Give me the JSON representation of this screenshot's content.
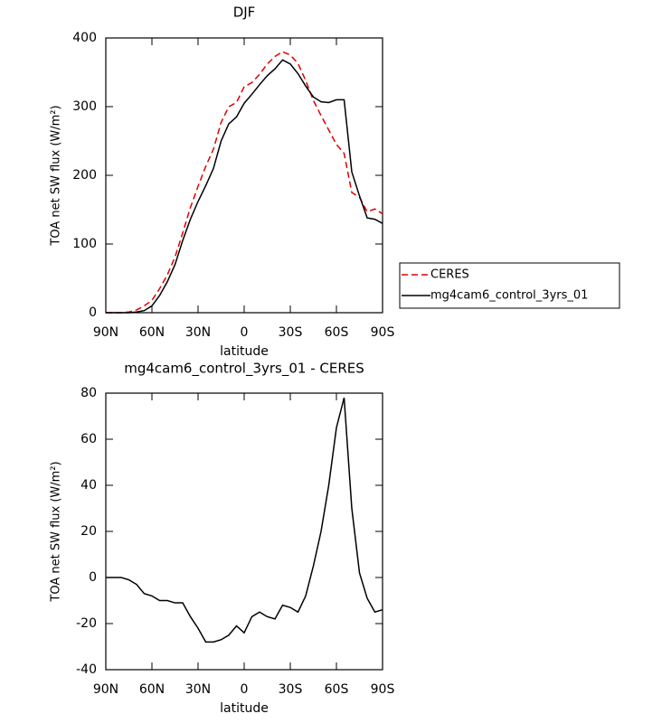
{
  "chart_data": [
    {
      "type": "line",
      "title": "DJF",
      "xlabel": "latitude",
      "ylabel": "TOA net SW flux (W/m²)",
      "x": [
        90,
        85,
        80,
        75,
        70,
        65,
        60,
        55,
        50,
        45,
        40,
        35,
        30,
        25,
        20,
        15,
        10,
        5,
        0,
        -5,
        -10,
        -15,
        -20,
        -25,
        -30,
        -35,
        -40,
        -45,
        -50,
        -55,
        -60,
        -65,
        -70,
        -75,
        -80,
        -85,
        -90
      ],
      "series": [
        {
          "name": "CERES",
          "color": "#e00000",
          "linestyle": "dashed",
          "values": [
            0,
            0,
            0,
            1,
            4,
            10,
            18,
            35,
            55,
            81,
            116,
            153,
            184,
            213,
            238,
            277,
            300,
            306,
            329,
            335,
            347,
            362,
            373,
            380,
            375,
            363,
            338,
            309,
            287,
            266,
            245,
            232,
            175,
            168,
            147,
            151,
            144
          ]
        },
        {
          "name": "mg4cam6_control_3yrs_01",
          "color": "#000000",
          "linestyle": "solid",
          "values": [
            0,
            0,
            0,
            0,
            1,
            3,
            10,
            25,
            45,
            70,
            105,
            136,
            162,
            185,
            210,
            250,
            275,
            285,
            305,
            318,
            332,
            345,
            355,
            368,
            362,
            348,
            330,
            314,
            307,
            306,
            310,
            310,
            205,
            170,
            138,
            136,
            130
          ]
        }
      ],
      "xlim": [
        90,
        -90
      ],
      "xticks": [
        {
          "value": 90,
          "label": "90N"
        },
        {
          "value": 60,
          "label": "60N"
        },
        {
          "value": 30,
          "label": "30N"
        },
        0,
        {
          "value": -30,
          "label": "30S"
        },
        {
          "value": -60,
          "label": "60S"
        },
        {
          "value": -90,
          "label": "90S"
        }
      ],
      "ylim": [
        0,
        400
      ],
      "yticks": [
        0,
        100,
        200,
        300,
        400
      ],
      "legend": "right"
    },
    {
      "type": "line",
      "title": "mg4cam6_control_3yrs_01 - CERES",
      "xlabel": "latitude",
      "ylabel": "TOA net SW flux (W/m²)",
      "x": [
        90,
        85,
        80,
        75,
        70,
        65,
        60,
        55,
        50,
        45,
        40,
        35,
        30,
        25,
        20,
        15,
        10,
        5,
        0,
        -5,
        -10,
        -15,
        -20,
        -25,
        -30,
        -35,
        -40,
        -45,
        -50,
        -55,
        -60,
        -65,
        -70,
        -75,
        -80,
        -85,
        -90
      ],
      "values": [
        0,
        0,
        0,
        -1,
        -3,
        -7,
        -8,
        -10,
        -10,
        -11,
        -11,
        -17,
        -22,
        -28,
        -28,
        -27,
        -25,
        -21,
        -24,
        -17,
        -15,
        -17,
        -18,
        -12,
        -13,
        -15,
        -8,
        5,
        20,
        40,
        65,
        78,
        30,
        2,
        -9,
        -15,
        -14
      ],
      "color": "#000000",
      "xlim": [
        90,
        -90
      ],
      "xticks": [
        {
          "value": 90,
          "label": "90N"
        },
        {
          "value": 60,
          "label": "60N"
        },
        {
          "value": 30,
          "label": "30N"
        },
        0,
        {
          "value": -30,
          "label": "30S"
        },
        {
          "value": -60,
          "label": "60S"
        },
        {
          "value": -90,
          "label": "90S"
        }
      ],
      "ylim": [
        -40,
        80
      ],
      "yticks": [
        -40,
        -20,
        0,
        20,
        40,
        60,
        80
      ]
    }
  ]
}
